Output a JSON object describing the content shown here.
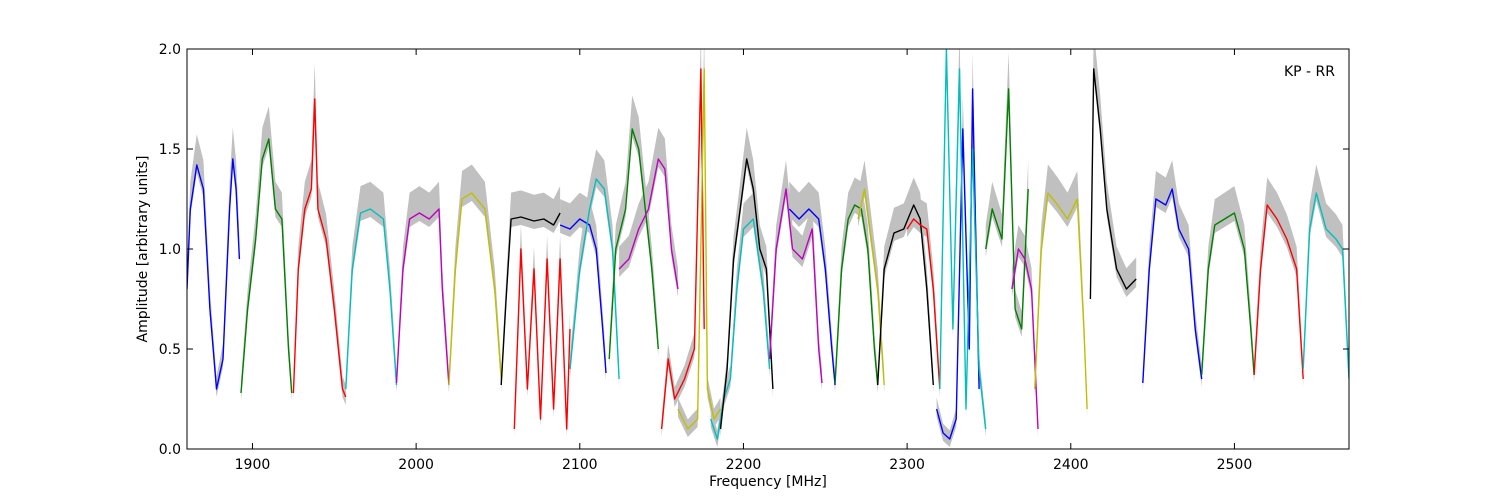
{
  "chart_data": {
    "type": "line",
    "annotation": "KP - RR",
    "xlabel": "Frequency [MHz]",
    "ylabel": "Amplitude [arbitrary units]",
    "xlim": [
      1860,
      2570
    ],
    "ylim": [
      0,
      2.0
    ],
    "x_ticks": [
      1900,
      2000,
      2100,
      2200,
      2300,
      2400,
      2500
    ],
    "x_tick_labels": [
      "1900",
      "2000",
      "2100",
      "2200",
      "2300",
      "2400",
      "2500"
    ],
    "y_ticks": [
      0.0,
      0.5,
      1.0,
      1.5,
      2.0
    ],
    "y_tick_labels": [
      "0.0",
      "0.5",
      "1.0",
      "1.5",
      "2.0"
    ],
    "grid": false,
    "background_color": "#c0c0c0",
    "series": [
      {
        "color": "#0000ff",
        "points": [
          [
            1860,
            0.8
          ],
          [
            1862,
            1.2
          ],
          [
            1866,
            1.42
          ],
          [
            1870,
            1.3
          ],
          [
            1874,
            0.7
          ],
          [
            1878,
            0.3
          ],
          [
            1882,
            0.45
          ],
          [
            1886,
            1.2
          ],
          [
            1888,
            1.45
          ],
          [
            1890,
            1.3
          ],
          [
            1892,
            0.95
          ]
        ]
      },
      {
        "color": "#008000",
        "points": [
          [
            1893,
            0.28
          ],
          [
            1897,
            0.7
          ],
          [
            1902,
            1.05
          ],
          [
            1906,
            1.45
          ],
          [
            1910,
            1.55
          ],
          [
            1914,
            1.2
          ],
          [
            1918,
            1.15
          ],
          [
            1922,
            0.5
          ],
          [
            1924,
            0.28
          ]
        ]
      },
      {
        "color": "#ff0000",
        "points": [
          [
            1925,
            0.28
          ],
          [
            1928,
            0.9
          ],
          [
            1932,
            1.2
          ],
          [
            1936,
            1.3
          ],
          [
            1938,
            1.75
          ],
          [
            1940,
            1.2
          ],
          [
            1945,
            1.05
          ],
          [
            1950,
            0.7
          ],
          [
            1955,
            0.3
          ],
          [
            1957,
            0.26
          ]
        ]
      },
      {
        "color": "#00bfbf",
        "points": [
          [
            1957,
            0.3
          ],
          [
            1961,
            0.9
          ],
          [
            1966,
            1.18
          ],
          [
            1972,
            1.2
          ],
          [
            1980,
            1.15
          ],
          [
            1984,
            0.8
          ],
          [
            1988,
            0.32
          ]
        ]
      },
      {
        "color": "#bf00bf",
        "points": [
          [
            1988,
            0.33
          ],
          [
            1992,
            0.9
          ],
          [
            1996,
            1.15
          ],
          [
            2002,
            1.18
          ],
          [
            2008,
            1.15
          ],
          [
            2014,
            1.2
          ],
          [
            2016,
            0.8
          ],
          [
            2020,
            0.32
          ]
        ]
      },
      {
        "color": "#bfbf00",
        "points": [
          [
            2020,
            0.32
          ],
          [
            2024,
            0.9
          ],
          [
            2028,
            1.25
          ],
          [
            2034,
            1.28
          ],
          [
            2042,
            1.2
          ],
          [
            2048,
            0.8
          ],
          [
            2052,
            0.35
          ]
        ]
      },
      {
        "color": "#000000",
        "points": [
          [
            2052,
            0.32
          ],
          [
            2055,
            0.75
          ],
          [
            2058,
            1.15
          ],
          [
            2064,
            1.16
          ],
          [
            2072,
            1.14
          ],
          [
            2078,
            1.15
          ],
          [
            2084,
            1.12
          ],
          [
            2088,
            1.18
          ]
        ]
      },
      {
        "color": "#ff0000",
        "points": [
          [
            2060,
            0.1
          ],
          [
            2064,
            1.0
          ],
          [
            2068,
            0.3
          ],
          [
            2072,
            0.9
          ],
          [
            2076,
            0.15
          ],
          [
            2080,
            0.95
          ],
          [
            2084,
            0.2
          ],
          [
            2088,
            0.95
          ],
          [
            2092,
            0.1
          ],
          [
            2094,
            0.6
          ]
        ]
      },
      {
        "color": "#0000ff",
        "points": [
          [
            2088,
            1.12
          ],
          [
            2094,
            1.1
          ],
          [
            2100,
            1.15
          ],
          [
            2106,
            1.12
          ],
          [
            2110,
            1.0
          ],
          [
            2114,
            0.6
          ],
          [
            2116,
            0.38
          ]
        ]
      },
      {
        "color": "#00bfbf",
        "points": [
          [
            2094,
            0.4
          ],
          [
            2100,
            0.9
          ],
          [
            2106,
            1.2
          ],
          [
            2110,
            1.35
          ],
          [
            2115,
            1.3
          ],
          [
            2120,
            1.0
          ],
          [
            2124,
            0.35
          ]
        ]
      },
      {
        "color": "#008000",
        "points": [
          [
            2118,
            0.45
          ],
          [
            2122,
            1.0
          ],
          [
            2128,
            1.2
          ],
          [
            2132,
            1.6
          ],
          [
            2136,
            1.5
          ],
          [
            2140,
            1.2
          ],
          [
            2144,
            0.9
          ],
          [
            2148,
            0.5
          ]
        ]
      },
      {
        "color": "#bf00bf",
        "points": [
          [
            2124,
            0.9
          ],
          [
            2130,
            0.95
          ],
          [
            2136,
            1.1
          ],
          [
            2142,
            1.2
          ],
          [
            2148,
            1.45
          ],
          [
            2152,
            1.4
          ],
          [
            2156,
            1.0
          ],
          [
            2160,
            0.8
          ]
        ]
      },
      {
        "color": "#ff0000",
        "points": [
          [
            2150,
            0.1
          ],
          [
            2154,
            0.45
          ],
          [
            2158,
            0.25
          ],
          [
            2164,
            0.35
          ],
          [
            2170,
            0.5
          ],
          [
            2174,
            1.9
          ],
          [
            2176,
            0.6
          ]
        ]
      },
      {
        "color": "#bfbf00",
        "points": [
          [
            2160,
            0.2
          ],
          [
            2166,
            0.1
          ],
          [
            2172,
            0.15
          ],
          [
            2176,
            1.9
          ],
          [
            2178,
            0.3
          ],
          [
            2182,
            0.15
          ],
          [
            2186,
            0.2
          ]
        ]
      },
      {
        "color": "#00bfbf",
        "points": [
          [
            2180,
            0.15
          ],
          [
            2184,
            0.05
          ],
          [
            2188,
            0.25
          ],
          [
            2192,
            0.35
          ],
          [
            2196,
            0.8
          ],
          [
            2200,
            1.1
          ],
          [
            2206,
            1.15
          ],
          [
            2212,
            0.8
          ],
          [
            2216,
            0.4
          ]
        ]
      },
      {
        "color": "#000000",
        "points": [
          [
            2186,
            0.1
          ],
          [
            2190,
            0.4
          ],
          [
            2194,
            0.95
          ],
          [
            2198,
            1.2
          ],
          [
            2202,
            1.45
          ],
          [
            2206,
            1.3
          ],
          [
            2210,
            1.0
          ],
          [
            2214,
            0.9
          ],
          [
            2218,
            0.3
          ]
        ]
      },
      {
        "color": "#bf00bf",
        "points": [
          [
            2216,
            0.45
          ],
          [
            2220,
            1.0
          ],
          [
            2226,
            1.3
          ],
          [
            2230,
            1.0
          ],
          [
            2236,
            0.95
          ],
          [
            2242,
            1.1
          ],
          [
            2246,
            0.5
          ],
          [
            2248,
            0.33
          ]
        ]
      },
      {
        "color": "#0000ff",
        "points": [
          [
            2228,
            1.2
          ],
          [
            2234,
            1.15
          ],
          [
            2240,
            1.2
          ],
          [
            2246,
            1.15
          ],
          [
            2250,
            0.9
          ],
          [
            2254,
            0.5
          ],
          [
            2256,
            0.32
          ]
        ]
      },
      {
        "color": "#008000",
        "points": [
          [
            2256,
            0.33
          ],
          [
            2260,
            0.9
          ],
          [
            2264,
            1.15
          ],
          [
            2268,
            1.22
          ],
          [
            2272,
            1.2
          ],
          [
            2276,
            1.0
          ],
          [
            2280,
            0.5
          ],
          [
            2282,
            0.32
          ]
        ]
      },
      {
        "color": "#bfbf00",
        "points": [
          [
            2270,
            1.15
          ],
          [
            2274,
            1.3
          ],
          [
            2278,
            1.05
          ],
          [
            2282,
            0.8
          ],
          [
            2286,
            0.32
          ]
        ]
      },
      {
        "color": "#000000",
        "points": [
          [
            2282,
            0.32
          ],
          [
            2286,
            0.9
          ],
          [
            2292,
            1.08
          ],
          [
            2298,
            1.1
          ],
          [
            2304,
            1.22
          ],
          [
            2308,
            1.15
          ],
          [
            2312,
            0.8
          ],
          [
            2316,
            0.32
          ]
        ]
      },
      {
        "color": "#ff0000",
        "points": [
          [
            2300,
            1.1
          ],
          [
            2304,
            1.15
          ],
          [
            2308,
            1.12
          ],
          [
            2312,
            1.1
          ],
          [
            2316,
            0.8
          ],
          [
            2320,
            0.3
          ]
        ]
      },
      {
        "color": "#0000ff",
        "points": [
          [
            2318,
            0.2
          ],
          [
            2322,
            0.08
          ],
          [
            2326,
            0.05
          ],
          [
            2330,
            0.15
          ],
          [
            2334,
            1.6
          ],
          [
            2338,
            0.5
          ],
          [
            2340,
            1.8
          ],
          [
            2344,
            0.3
          ]
        ]
      },
      {
        "color": "#00bfbf",
        "points": [
          [
            2320,
            0.3
          ],
          [
            2324,
            2.0
          ],
          [
            2328,
            0.6
          ],
          [
            2332,
            1.9
          ],
          [
            2336,
            0.2
          ],
          [
            2340,
            1.5
          ],
          [
            2344,
            0.4
          ],
          [
            2348,
            0.1
          ]
        ]
      },
      {
        "color": "#008000",
        "points": [
          [
            2348,
            1.0
          ],
          [
            2352,
            1.2
          ],
          [
            2358,
            1.05
          ],
          [
            2362,
            1.8
          ],
          [
            2366,
            0.7
          ],
          [
            2370,
            0.6
          ],
          [
            2374,
            1.3
          ]
        ]
      },
      {
        "color": "#bf00bf",
        "points": [
          [
            2364,
            0.8
          ],
          [
            2368,
            1.0
          ],
          [
            2372,
            0.95
          ],
          [
            2376,
            0.8
          ],
          [
            2380,
            0.1
          ]
        ]
      },
      {
        "color": "#bfbf00",
        "points": [
          [
            2378,
            0.3
          ],
          [
            2382,
            1.0
          ],
          [
            2386,
            1.28
          ],
          [
            2392,
            1.22
          ],
          [
            2398,
            1.15
          ],
          [
            2404,
            1.25
          ],
          [
            2408,
            0.6
          ],
          [
            2410,
            0.2
          ]
        ]
      },
      {
        "color": "#000000",
        "points": [
          [
            2412,
            0.75
          ],
          [
            2414,
            1.9
          ],
          [
            2418,
            1.6
          ],
          [
            2422,
            1.2
          ],
          [
            2428,
            0.9
          ],
          [
            2434,
            0.8
          ],
          [
            2440,
            0.85
          ]
        ]
      },
      {
        "color": "#0000ff",
        "points": [
          [
            2444,
            0.33
          ],
          [
            2448,
            0.9
          ],
          [
            2452,
            1.25
          ],
          [
            2458,
            1.22
          ],
          [
            2462,
            1.3
          ],
          [
            2466,
            1.1
          ],
          [
            2472,
            1.0
          ],
          [
            2476,
            0.6
          ],
          [
            2480,
            0.35
          ]
        ]
      },
      {
        "color": "#008000",
        "points": [
          [
            2480,
            0.37
          ],
          [
            2484,
            0.9
          ],
          [
            2488,
            1.12
          ],
          [
            2494,
            1.15
          ],
          [
            2500,
            1.18
          ],
          [
            2506,
            1.0
          ],
          [
            2510,
            0.6
          ],
          [
            2512,
            0.37
          ]
        ]
      },
      {
        "color": "#ff0000",
        "points": [
          [
            2512,
            0.37
          ],
          [
            2516,
            0.9
          ],
          [
            2520,
            1.22
          ],
          [
            2526,
            1.15
          ],
          [
            2532,
            1.05
          ],
          [
            2538,
            0.9
          ],
          [
            2542,
            0.35
          ]
        ]
      },
      {
        "color": "#00bfbf",
        "points": [
          [
            2542,
            0.4
          ],
          [
            2546,
            1.1
          ],
          [
            2550,
            1.28
          ],
          [
            2556,
            1.1
          ],
          [
            2562,
            1.05
          ],
          [
            2566,
            1.0
          ],
          [
            2570,
            0.35
          ]
        ]
      }
    ]
  }
}
